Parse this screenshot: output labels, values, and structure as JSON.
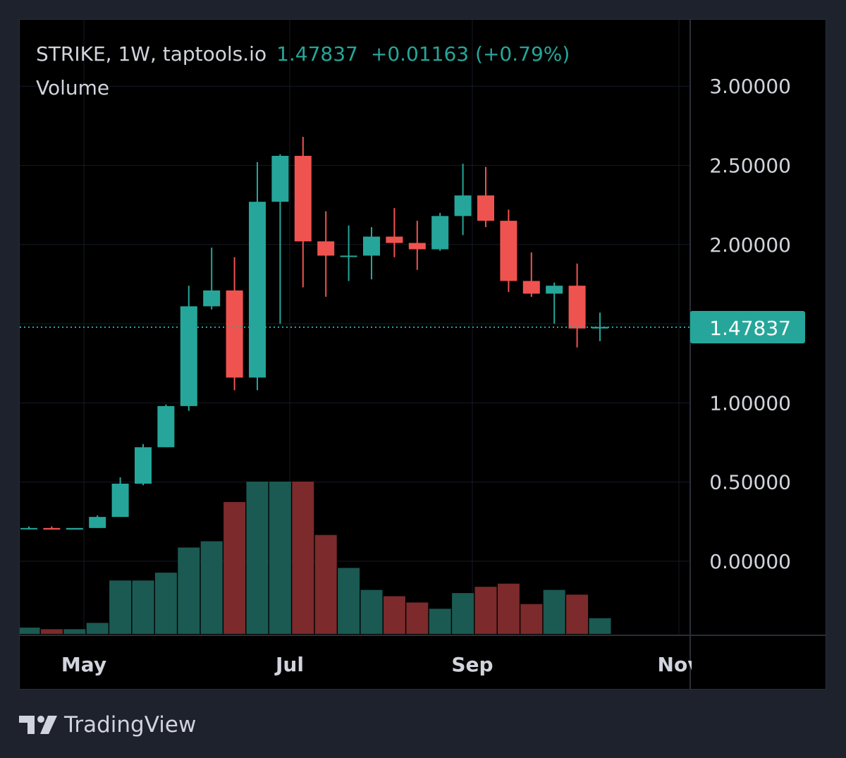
{
  "header": {
    "symbol_line": "STRIKE, 1W, taptools.io",
    "last_price": "1.47837",
    "change": "+0.01163 (+0.79%)",
    "volume_label": "Volume"
  },
  "footer": {
    "brand": "TradingView"
  },
  "colors": {
    "up": "#26a69a",
    "down": "#ef5350",
    "up_volume": "#1a5a53",
    "down_volume": "#7c2a2b",
    "background": "#000000",
    "frame": "#1e222d",
    "grid": "#161a25",
    "axis_text": "#d1d4dc"
  },
  "chart_data": {
    "type": "candlestick",
    "interval": "1W",
    "price_axis": {
      "ticks": [
        "3.00000",
        "2.50000",
        "2.00000",
        "1.00000",
        "0.50000",
        "0.00000"
      ],
      "current_price_label": "1.47837",
      "current_price": 1.47837
    },
    "time_axis": {
      "ticks": [
        "May",
        "Jul",
        "Sep",
        "Nov"
      ]
    },
    "candles": [
      {
        "open": 0.21,
        "high": 0.22,
        "low": 0.2,
        "close": 0.21
      },
      {
        "open": 0.21,
        "high": 0.22,
        "low": 0.2,
        "close": 0.2
      },
      {
        "open": 0.2,
        "high": 0.21,
        "low": 0.2,
        "close": 0.21
      },
      {
        "open": 0.21,
        "high": 0.29,
        "low": 0.21,
        "close": 0.28
      },
      {
        "open": 0.28,
        "high": 0.53,
        "low": 0.28,
        "close": 0.49
      },
      {
        "open": 0.49,
        "high": 0.74,
        "low": 0.48,
        "close": 0.72
      },
      {
        "open": 0.72,
        "high": 0.99,
        "low": 0.72,
        "close": 0.98
      },
      {
        "open": 0.98,
        "high": 1.74,
        "low": 0.95,
        "close": 1.61
      },
      {
        "open": 1.61,
        "high": 1.98,
        "low": 1.59,
        "close": 1.71
      },
      {
        "open": 1.71,
        "high": 1.92,
        "low": 1.08,
        "close": 1.16
      },
      {
        "open": 1.16,
        "high": 2.52,
        "low": 1.08,
        "close": 2.27
      },
      {
        "open": 2.27,
        "high": 2.57,
        "low": 1.5,
        "close": 2.56
      },
      {
        "open": 2.56,
        "high": 2.68,
        "low": 1.73,
        "close": 2.02
      },
      {
        "open": 2.02,
        "high": 2.21,
        "low": 1.67,
        "close": 1.93
      },
      {
        "open": 1.93,
        "high": 2.12,
        "low": 1.77,
        "close": 1.93
      },
      {
        "open": 1.93,
        "high": 2.11,
        "low": 1.78,
        "close": 2.05
      },
      {
        "open": 2.05,
        "high": 2.23,
        "low": 1.92,
        "close": 2.01
      },
      {
        "open": 2.01,
        "high": 2.15,
        "low": 1.84,
        "close": 1.97
      },
      {
        "open": 1.97,
        "high": 2.2,
        "low": 1.96,
        "close": 2.18
      },
      {
        "open": 2.18,
        "high": 2.51,
        "low": 2.06,
        "close": 2.31
      },
      {
        "open": 2.31,
        "high": 2.49,
        "low": 2.11,
        "close": 2.15
      },
      {
        "open": 2.15,
        "high": 2.22,
        "low": 1.7,
        "close": 1.77
      },
      {
        "open": 1.77,
        "high": 1.95,
        "low": 1.67,
        "close": 1.69
      },
      {
        "open": 1.69,
        "high": 1.76,
        "low": 1.5,
        "close": 1.74
      },
      {
        "open": 1.74,
        "high": 1.88,
        "low": 1.35,
        "close": 1.47
      },
      {
        "open": 1.47,
        "high": 1.57,
        "low": 1.39,
        "close": 1.48
      }
    ],
    "volume": {
      "label": "Volume",
      "values": [
        4,
        3,
        3,
        7,
        34,
        34,
        39,
        55,
        59,
        84,
        97,
        97,
        97,
        63,
        42,
        28,
        24,
        20,
        16,
        26,
        30,
        32,
        19,
        28,
        25,
        10
      ]
    }
  }
}
